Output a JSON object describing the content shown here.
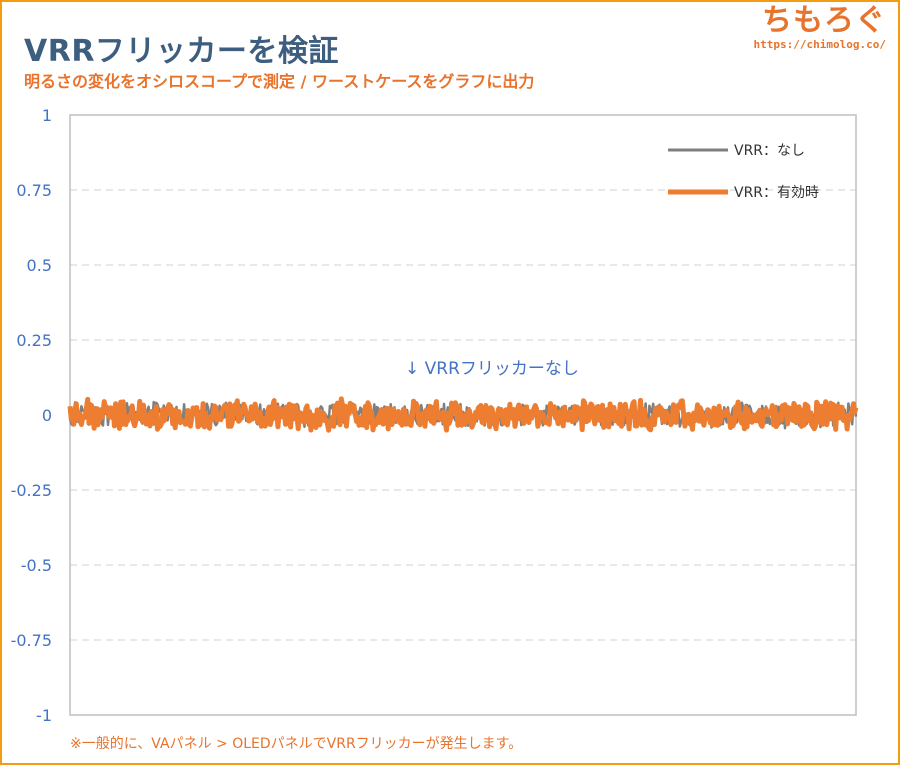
{
  "header": {
    "title": "VRRフリッカーを検証",
    "subtitle": "明るさの変化をオシロスコープで測定 / ワーストケースをグラフに出力"
  },
  "brand": {
    "logo_text": "ちもろぐ",
    "url": "https://chimolog.co/"
  },
  "footnote": "※一般的に、VAパネル > OLEDパネルでVRRフリッカーが発生します。",
  "chart_data": {
    "type": "line",
    "title": "VRRフリッカーを検証",
    "xlabel": "",
    "ylabel": "",
    "ylim": [
      -1,
      1
    ],
    "yticks": [
      1,
      0.75,
      0.5,
      0.25,
      0,
      -0.25,
      -0.5,
      -0.75,
      -1
    ],
    "ytick_labels": [
      "1",
      "0.75",
      "0.5",
      "0.25",
      "0",
      "-0.25",
      "-0.5",
      "-0.75",
      "-1"
    ],
    "grid": "horizontal-dashed",
    "legend_position": "top-right",
    "annotation": "↓ VRRフリッカーなし",
    "series": [
      {
        "name": "VRR：なし",
        "color": "#7f7f7f",
        "noise_amplitude": 0.045,
        "mean": 0.0
      },
      {
        "name": "VRR：有効時",
        "color": "#ed7d31",
        "noise_amplitude": 0.055,
        "mean": 0.0
      }
    ]
  }
}
